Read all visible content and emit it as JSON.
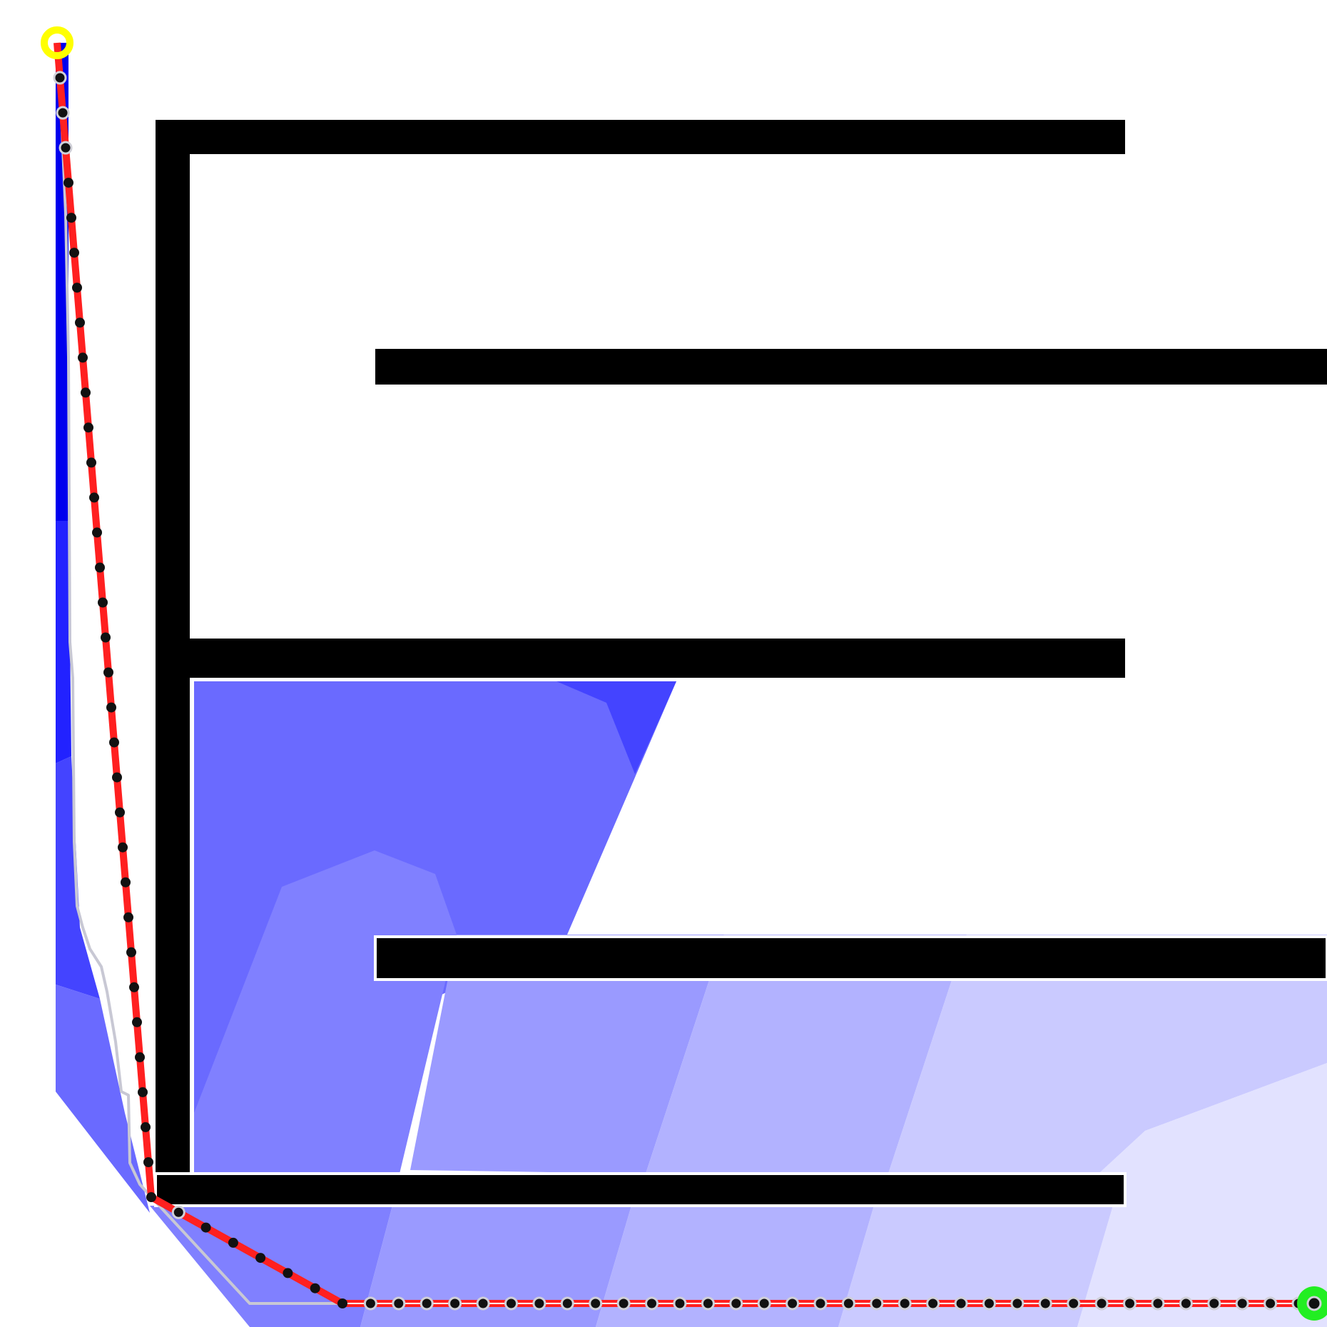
{
  "colors": {
    "background": "#ffffff",
    "wall": "#000000",
    "wall_outline": "#ffffff",
    "path": "#ff2020",
    "waypoint_fill": "#111111",
    "waypoint_ring": "#d0d0d8",
    "reference_path": "#c8c8d4",
    "start_marker": "#ffff00",
    "goal_marker": "#22ee22",
    "field_levels": [
      "#0000ee",
      "#2222ff",
      "#4444ff",
      "#6a6aff",
      "#8080ff",
      "#9a9aff",
      "#b2b2ff",
      "#cacaff",
      "#e2e2ff"
    ]
  },
  "icons": {
    "start": "start-marker-icon",
    "goal": "goal-marker-icon",
    "waypoint": "waypoint-dot-icon"
  }
}
